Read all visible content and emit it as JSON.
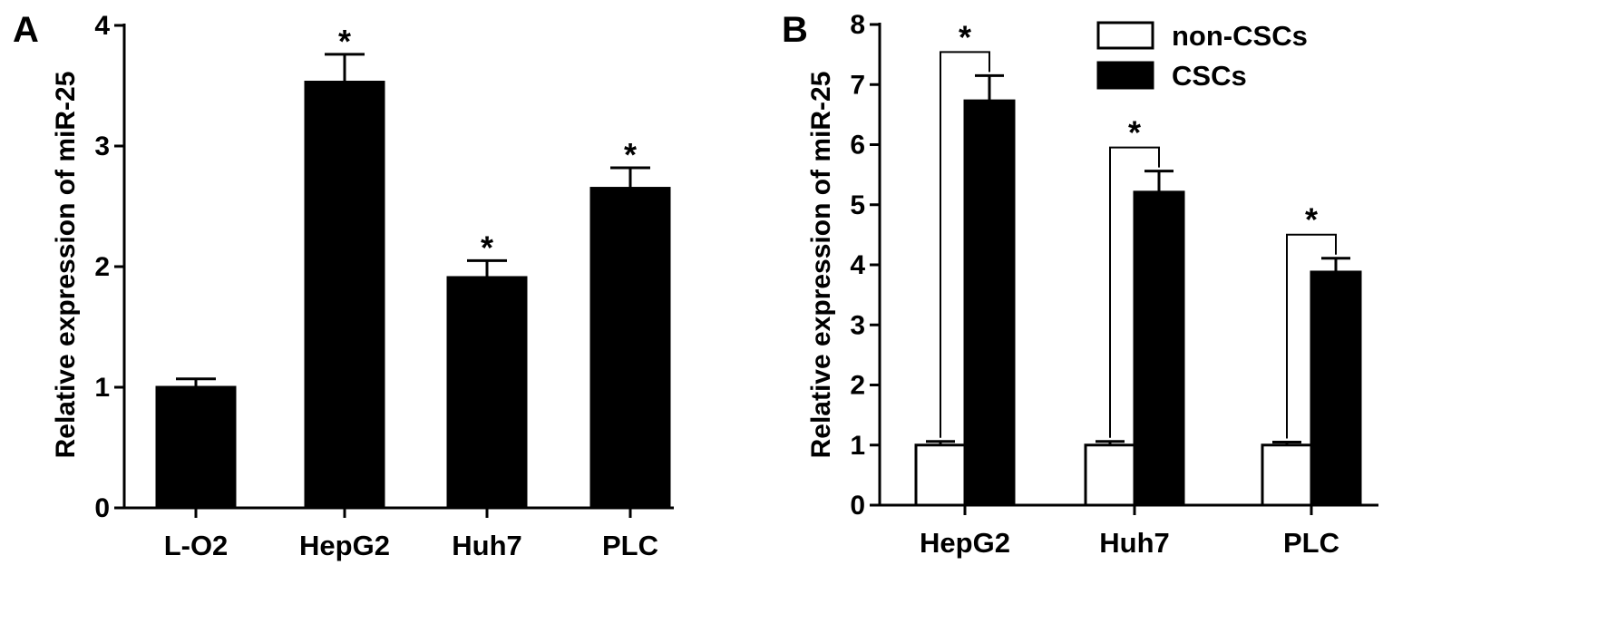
{
  "chart_data": [
    {
      "panel": "A",
      "type": "bar",
      "categories": [
        "L-O2",
        "HepG2",
        "Huh7",
        "PLC"
      ],
      "series": [
        {
          "values": [
            1.0,
            3.53,
            1.91,
            2.65
          ],
          "errors": [
            0.07,
            0.23,
            0.14,
            0.17
          ],
          "color": "#000000"
        }
      ],
      "significance": [
        "",
        "*",
        "*",
        "*"
      ],
      "ylabel": "Relative expression of miR-25",
      "ylim": [
        0,
        4
      ],
      "yticks": [
        "0",
        "1",
        "2",
        "3",
        "4"
      ],
      "legend": "none",
      "grid": false
    },
    {
      "panel": "B",
      "type": "bar",
      "categories": [
        "HepG2",
        "Huh7",
        "PLC"
      ],
      "series": [
        {
          "name": "non-CSCs",
          "values": [
            1.0,
            1.0,
            1.0
          ],
          "errors": [
            0.06,
            0.06,
            0.05
          ],
          "color": "#ffffff"
        },
        {
          "name": "CSCs",
          "values": [
            6.73,
            5.21,
            3.88
          ],
          "errors": [
            0.42,
            0.35,
            0.23
          ],
          "color": "#000000"
        }
      ],
      "significance": [
        "*",
        "*",
        "*"
      ],
      "ylabel": "Relative expression of miR-25",
      "ylim": [
        0,
        8
      ],
      "yticks": [
        "0",
        "1",
        "2",
        "3",
        "4",
        "5",
        "6",
        "7",
        "8"
      ],
      "legend": "top-right",
      "grid": false
    }
  ]
}
